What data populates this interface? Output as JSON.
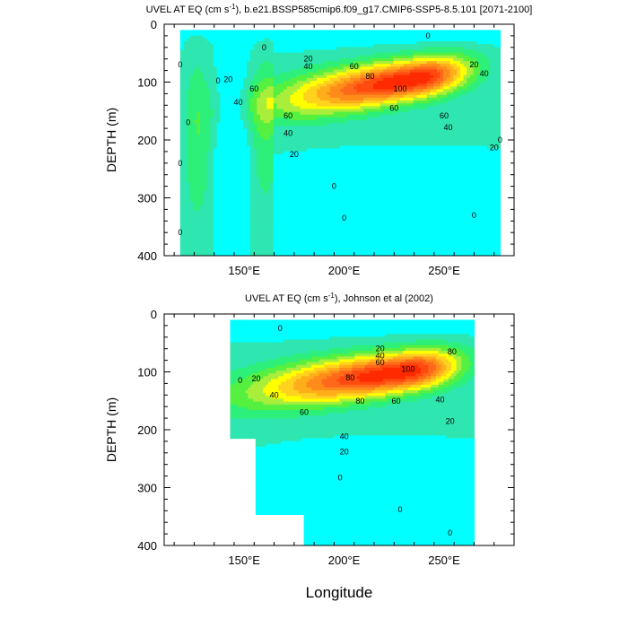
{
  "colors": [
    "#00ffff",
    "#2fe6b0",
    "#2cf07a",
    "#55f040",
    "#a8ee3a",
    "#ffff00",
    "#ffd21f",
    "#ffae1a",
    "#ff8c1a",
    "#ff6a1a",
    "#ff4a10",
    "#ff2a00",
    "#e60000"
  ],
  "chart_data": [
    {
      "type": "heatmap",
      "title": "UVEL AT EQ (cm s⁻¹), b.e21.BSSP585cmip6.f09_g17.CMIP6-SSP5-8.5.101 [2071-2100]",
      "title_plain": "UVEL AT EQ (cm s",
      "title_sup": "-1",
      "title_rest": "), b.e21.BSSP585cmip6.f09_g17.CMIP6-SSP5-8.5.101 [2071-2100]",
      "xlabel": "",
      "ylabel": "DEPTH (m)",
      "xlim": [
        110,
        285
      ],
      "ylim": [
        400,
        0
      ],
      "data_extent": {
        "lon": [
          118,
          278
        ],
        "depth": [
          10,
          400
        ]
      },
      "x_ticks": [
        {
          "value": 150,
          "label": "150°E"
        },
        {
          "value": 200,
          "label": "200°E"
        },
        {
          "value": 250,
          "label": "250°E"
        }
      ],
      "y_ticks": [
        0,
        100,
        200,
        300,
        400
      ],
      "core": {
        "lon": 235,
        "depth": 95,
        "max": 110
      },
      "contour_levels": [
        0,
        10,
        20,
        30,
        40,
        50,
        60,
        70,
        80,
        90,
        100,
        110
      ],
      "contour_labels": [
        {
          "text": "0",
          "lon": 160,
          "depth": 40
        },
        {
          "text": "0",
          "lon": 242,
          "depth": 20
        },
        {
          "text": "20",
          "lon": 182,
          "depth": 60
        },
        {
          "text": "40",
          "lon": 182,
          "depth": 73
        },
        {
          "text": "60",
          "lon": 205,
          "depth": 73
        },
        {
          "text": "80",
          "lon": 213,
          "depth": 90
        },
        {
          "text": "100",
          "lon": 228,
          "depth": 112
        },
        {
          "text": "60",
          "lon": 225,
          "depth": 145
        },
        {
          "text": "60",
          "lon": 250,
          "depth": 158
        },
        {
          "text": "40",
          "lon": 252,
          "depth": 178
        },
        {
          "text": "20",
          "lon": 275,
          "depth": 213
        },
        {
          "text": "60",
          "lon": 172,
          "depth": 158
        },
        {
          "text": "40",
          "lon": 172,
          "depth": 188
        },
        {
          "text": "20",
          "lon": 175,
          "depth": 225
        },
        {
          "text": "0",
          "lon": 195,
          "depth": 280
        },
        {
          "text": "0",
          "lon": 200,
          "depth": 335
        },
        {
          "text": "60",
          "lon": 155,
          "depth": 112
        },
        {
          "text": "40",
          "lon": 147,
          "depth": 135
        },
        {
          "text": "20",
          "lon": 142,
          "depth": 95
        },
        {
          "text": "0",
          "lon": 118,
          "depth": 70
        },
        {
          "text": "0",
          "lon": 122,
          "depth": 170
        },
        {
          "text": "0",
          "lon": 118,
          "depth": 240
        },
        {
          "text": "0",
          "lon": 118,
          "depth": 360
        },
        {
          "text": "0",
          "lon": 137,
          "depth": 98
        },
        {
          "text": "0",
          "lon": 265,
          "depth": 330
        },
        {
          "text": "0",
          "lon": 278,
          "depth": 200
        },
        {
          "text": "20",
          "lon": 265,
          "depth": 70
        },
        {
          "text": "40",
          "lon": 270,
          "depth": 85
        }
      ]
    },
    {
      "type": "heatmap",
      "title": "UVEL AT EQ (cm s⁻¹), Johnson et al (2002)",
      "title_plain": "UVEL AT EQ (cm s",
      "title_sup": "-1",
      "title_rest": "), Johnson et al (2002)",
      "xlabel": "Longitude",
      "ylabel": "DEPTH (m)",
      "xlim": [
        110,
        285
      ],
      "ylim": [
        400,
        0
      ],
      "data_extent": {
        "lon": [
          143,
          265
        ],
        "depth": [
          10,
          400
        ]
      },
      "x_ticks": [
        {
          "value": 150,
          "label": "150°E"
        },
        {
          "value": 200,
          "label": "200°E"
        },
        {
          "value": 250,
          "label": "250°E"
        }
      ],
      "y_ticks": [
        0,
        100,
        200,
        300,
        400
      ],
      "core": {
        "lon": 230,
        "depth": 100,
        "max": 110
      },
      "contour_levels": [
        0,
        10,
        20,
        30,
        40,
        50,
        60,
        70,
        80,
        90,
        100,
        110
      ],
      "contour_labels": [
        {
          "text": "0",
          "lon": 168,
          "depth": 25
        },
        {
          "text": "0",
          "lon": 148,
          "depth": 115
        },
        {
          "text": "20",
          "lon": 156,
          "depth": 112
        },
        {
          "text": "40",
          "lon": 165,
          "depth": 140
        },
        {
          "text": "60",
          "lon": 180,
          "depth": 170
        },
        {
          "text": "80",
          "lon": 203,
          "depth": 110
        },
        {
          "text": "100",
          "lon": 232,
          "depth": 95
        },
        {
          "text": "80",
          "lon": 208,
          "depth": 150
        },
        {
          "text": "60",
          "lon": 226,
          "depth": 150
        },
        {
          "text": "40",
          "lon": 248,
          "depth": 148
        },
        {
          "text": "20",
          "lon": 253,
          "depth": 185
        },
        {
          "text": "40",
          "lon": 200,
          "depth": 212
        },
        {
          "text": "20",
          "lon": 200,
          "depth": 238
        },
        {
          "text": "0",
          "lon": 198,
          "depth": 283
        },
        {
          "text": "0",
          "lon": 228,
          "depth": 338
        },
        {
          "text": "0",
          "lon": 253,
          "depth": 378
        },
        {
          "text": "20",
          "lon": 218,
          "depth": 60
        },
        {
          "text": "40",
          "lon": 218,
          "depth": 72
        },
        {
          "text": "60",
          "lon": 218,
          "depth": 84
        },
        {
          "text": "80",
          "lon": 254,
          "depth": 65
        }
      ]
    }
  ]
}
